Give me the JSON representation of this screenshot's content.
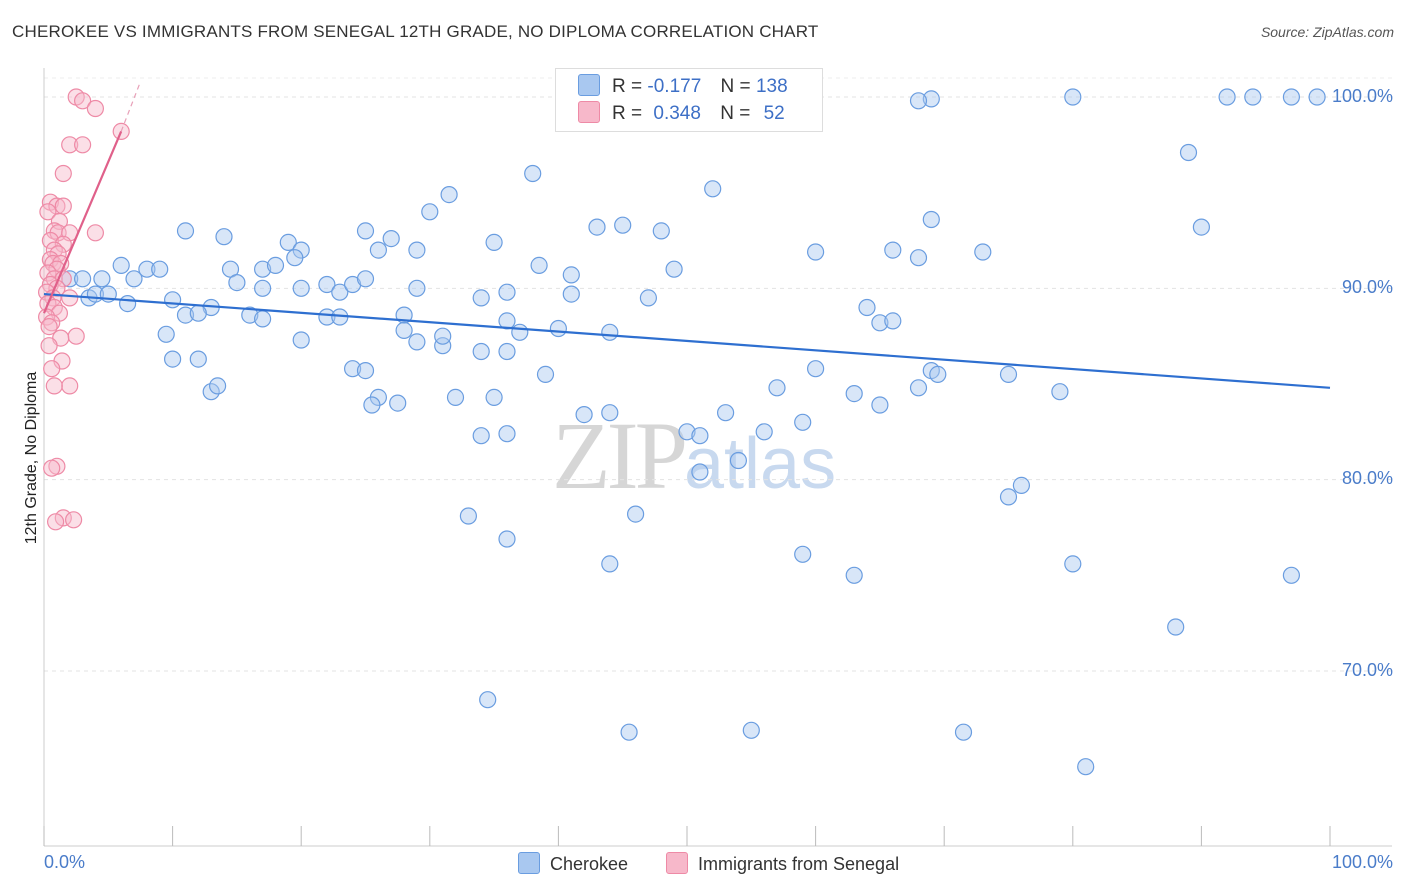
{
  "title": "CHEROKEE VS IMMIGRANTS FROM SENEGAL 12TH GRADE, NO DIPLOMA CORRELATION CHART",
  "source": "Source: ZipAtlas.com",
  "watermark": {
    "zip": "ZIP",
    "atlas": "atlas"
  },
  "legend": {
    "rows": [
      {
        "r_label": "R =",
        "r_value": "-0.177",
        "n_label": "N =",
        "n_value": "138",
        "color": "#a9c8f0"
      },
      {
        "r_label": "R =",
        "r_value": "0.348",
        "n_label": "N =",
        "n_value": "52",
        "color": "#f7b8ca"
      }
    ]
  },
  "chart_data": {
    "type": "scatter",
    "title": "CHEROKEE VS IMMIGRANTS FROM SENEGAL 12TH GRADE, NO DIPLOMA CORRELATION CHART",
    "xlabel": "",
    "ylabel": "12th Grade, No Diploma",
    "x_tick_labels": [
      "0.0%",
      "100.0%"
    ],
    "y_tick_labels": [
      "100.0%",
      "90.0%",
      "80.0%",
      "70.0%"
    ],
    "y_ticks": [
      100,
      90,
      80,
      70
    ],
    "xlim": [
      0,
      100
    ],
    "ylim": [
      62,
      101.5
    ],
    "grid": true,
    "legend_position": "top-center",
    "series": [
      {
        "name": "Cherokee",
        "color": "#6a9de0",
        "fill": "#a9c8f0",
        "trend": {
          "x": [
            0,
            100
          ],
          "y": [
            89.7,
            84.8
          ]
        },
        "points": [
          [
            46,
            100
          ],
          [
            50,
            99.8
          ],
          [
            80,
            100
          ],
          [
            92,
            100
          ],
          [
            94,
            100
          ],
          [
            97,
            100
          ],
          [
            99,
            100
          ],
          [
            69,
            99.9
          ],
          [
            68,
            99.8
          ],
          [
            38,
            96
          ],
          [
            31.5,
            94.9
          ],
          [
            52,
            95.2
          ],
          [
            30,
            94
          ],
          [
            69,
            93.6
          ],
          [
            89,
            97.1
          ],
          [
            43,
            93.2
          ],
          [
            45,
            93.3
          ],
          [
            48,
            93
          ],
          [
            90,
            93.2
          ],
          [
            11,
            93
          ],
          [
            14,
            92.7
          ],
          [
            19,
            92.4
          ],
          [
            20,
            92
          ],
          [
            25,
            93
          ],
          [
            27,
            92.6
          ],
          [
            26,
            92
          ],
          [
            29,
            92
          ],
          [
            35,
            92.4
          ],
          [
            60,
            91.9
          ],
          [
            66,
            92
          ],
          [
            68,
            91.6
          ],
          [
            73,
            91.9
          ],
          [
            6,
            91.2
          ],
          [
            8,
            91
          ],
          [
            9,
            91
          ],
          [
            14.5,
            91
          ],
          [
            17,
            91
          ],
          [
            18,
            91.2
          ],
          [
            19.5,
            91.6
          ],
          [
            38.5,
            91.2
          ],
          [
            41,
            90.7
          ],
          [
            49,
            91
          ],
          [
            2,
            90.5
          ],
          [
            3,
            90.5
          ],
          [
            4.5,
            90.5
          ],
          [
            7,
            90.5
          ],
          [
            15,
            90.3
          ],
          [
            17,
            90
          ],
          [
            20,
            90
          ],
          [
            22,
            90.2
          ],
          [
            23,
            89.8
          ],
          [
            24,
            90.2
          ],
          [
            25,
            90.5
          ],
          [
            29,
            90
          ],
          [
            34,
            89.5
          ],
          [
            36,
            89.8
          ],
          [
            41,
            89.7
          ],
          [
            47,
            89.5
          ],
          [
            3.5,
            89.5
          ],
          [
            4,
            89.7
          ],
          [
            5,
            89.7
          ],
          [
            6.5,
            89.2
          ],
          [
            10,
            89.4
          ],
          [
            13,
            89
          ],
          [
            11,
            88.6
          ],
          [
            12,
            88.7
          ],
          [
            16,
            88.6
          ],
          [
            17,
            88.4
          ],
          [
            22,
            88.5
          ],
          [
            23,
            88.5
          ],
          [
            28,
            88.6
          ],
          [
            36,
            88.3
          ],
          [
            40,
            87.9
          ],
          [
            44,
            87.7
          ],
          [
            64,
            89
          ],
          [
            65,
            88.2
          ],
          [
            66,
            88.3
          ],
          [
            9.5,
            87.6
          ],
          [
            20,
            87.3
          ],
          [
            28,
            87.8
          ],
          [
            29,
            87.2
          ],
          [
            31,
            87
          ],
          [
            34,
            86.7
          ],
          [
            36,
            86.7
          ],
          [
            37,
            87.7
          ],
          [
            31,
            87.5
          ],
          [
            10,
            86.3
          ],
          [
            12,
            86.3
          ],
          [
            24,
            85.8
          ],
          [
            25,
            85.7
          ],
          [
            39,
            85.5
          ],
          [
            60,
            85.8
          ],
          [
            69,
            85.7
          ],
          [
            69.5,
            85.5
          ],
          [
            75,
            85.5
          ],
          [
            13,
            84.6
          ],
          [
            13.5,
            84.9
          ],
          [
            26,
            84.3
          ],
          [
            25.5,
            83.9
          ],
          [
            27.5,
            84
          ],
          [
            32,
            84.3
          ],
          [
            35,
            84.3
          ],
          [
            42,
            83.4
          ],
          [
            44,
            83.5
          ],
          [
            53,
            83.5
          ],
          [
            57,
            84.8
          ],
          [
            63,
            84.5
          ],
          [
            65,
            83.9
          ],
          [
            68,
            84.8
          ],
          [
            79,
            84.6
          ],
          [
            34,
            82.3
          ],
          [
            36,
            82.4
          ],
          [
            50,
            82.5
          ],
          [
            51,
            82.3
          ],
          [
            56,
            82.5
          ],
          [
            59,
            83
          ],
          [
            54,
            81
          ],
          [
            51,
            80.4
          ],
          [
            75,
            79.1
          ],
          [
            76,
            79.7
          ],
          [
            33,
            78.1
          ],
          [
            46,
            78.2
          ],
          [
            36,
            76.9
          ],
          [
            44,
            75.6
          ],
          [
            59,
            76.1
          ],
          [
            63,
            75
          ],
          [
            80,
            75.6
          ],
          [
            97,
            75
          ],
          [
            88,
            72.3
          ],
          [
            34.5,
            68.5
          ],
          [
            45.5,
            66.8
          ],
          [
            55,
            66.9
          ],
          [
            71.5,
            66.8
          ],
          [
            81,
            65
          ]
        ]
      },
      {
        "name": "Immigrants from Senegal",
        "color": "#ee8aa6",
        "fill": "#f7b8ca",
        "trend": {
          "x": [
            0,
            6
          ],
          "y": [
            88.7,
            98.2
          ]
        },
        "trend_dashed": {
          "x": [
            6,
            7.5
          ],
          "y": [
            98.2,
            100.8
          ]
        },
        "points": [
          [
            2.5,
            100
          ],
          [
            3,
            99.8
          ],
          [
            4,
            99.4
          ],
          [
            6,
            98.2
          ],
          [
            2,
            97.5
          ],
          [
            3,
            97.5
          ],
          [
            1.5,
            96
          ],
          [
            0.5,
            94.5
          ],
          [
            1,
            94.3
          ],
          [
            1.5,
            94.3
          ],
          [
            0.3,
            94
          ],
          [
            1.2,
            93.5
          ],
          [
            0.8,
            93
          ],
          [
            1.1,
            92.9
          ],
          [
            2,
            92.9
          ],
          [
            4,
            92.9
          ],
          [
            0.5,
            92.5
          ],
          [
            1.5,
            92.3
          ],
          [
            0.8,
            92
          ],
          [
            1.1,
            91.8
          ],
          [
            0.5,
            91.5
          ],
          [
            0.7,
            91.3
          ],
          [
            1.3,
            91.3
          ],
          [
            1,
            91
          ],
          [
            0.3,
            90.8
          ],
          [
            0.8,
            90.5
          ],
          [
            1.5,
            90.5
          ],
          [
            0.5,
            90.2
          ],
          [
            1,
            90
          ],
          [
            0.2,
            89.8
          ],
          [
            0.7,
            89.5
          ],
          [
            2,
            89.5
          ],
          [
            0.3,
            89.2
          ],
          [
            0.8,
            89
          ],
          [
            1.2,
            88.7
          ],
          [
            0.2,
            88.5
          ],
          [
            0.6,
            88.2
          ],
          [
            0.4,
            88
          ],
          [
            2.5,
            87.5
          ],
          [
            1.3,
            87.4
          ],
          [
            0.4,
            87
          ],
          [
            1.4,
            86.2
          ],
          [
            0.6,
            85.8
          ],
          [
            2,
            84.9
          ],
          [
            0.8,
            84.9
          ],
          [
            1,
            80.7
          ],
          [
            0.6,
            80.6
          ],
          [
            1.5,
            78
          ],
          [
            0.9,
            77.8
          ],
          [
            2.3,
            77.9
          ]
        ]
      }
    ]
  }
}
